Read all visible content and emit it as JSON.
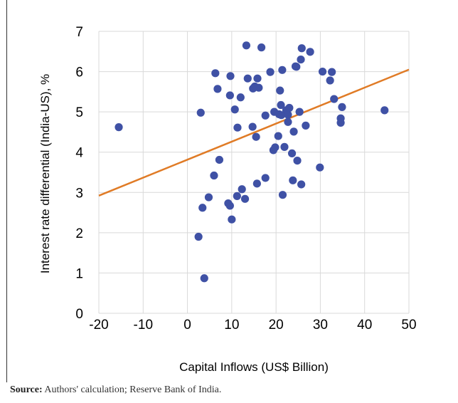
{
  "chart_data": {
    "type": "scatter",
    "title": "",
    "xlabel": "Capital Inflows (US$ Billion)",
    "ylabel": "Interest rate differential (India-US), %",
    "xlim": [
      -20,
      50
    ],
    "ylim": [
      0,
      7
    ],
    "xticks": [
      "-20",
      "-10",
      "0",
      "10",
      "20",
      "30",
      "40",
      "50"
    ],
    "yticks": [
      "0",
      "1",
      "2",
      "3",
      "4",
      "5",
      "6",
      "7"
    ],
    "grid": "vertical and horizontal major gridlines",
    "marker_color": "#3f51a5",
    "trendline_color": "#e07b26",
    "trendline": {
      "x": [
        -20,
        50
      ],
      "y": [
        2.92,
        6.05
      ]
    },
    "points": [
      [
        -15.5,
        4.62
      ],
      [
        2.5,
        1.9
      ],
      [
        3.0,
        4.98
      ],
      [
        3.4,
        2.62
      ],
      [
        3.8,
        0.87
      ],
      [
        4.8,
        2.88
      ],
      [
        6.0,
        3.42
      ],
      [
        6.3,
        5.96
      ],
      [
        6.8,
        5.57
      ],
      [
        7.2,
        3.81
      ],
      [
        9.2,
        2.73
      ],
      [
        9.6,
        2.67
      ],
      [
        9.6,
        5.41
      ],
      [
        9.7,
        5.89
      ],
      [
        10.0,
        2.33
      ],
      [
        10.7,
        5.06
      ],
      [
        11.2,
        2.91
      ],
      [
        11.3,
        4.61
      ],
      [
        12.0,
        5.36
      ],
      [
        12.3,
        3.08
      ],
      [
        13.0,
        2.84
      ],
      [
        13.3,
        6.65
      ],
      [
        13.6,
        5.83
      ],
      [
        14.7,
        4.63
      ],
      [
        14.8,
        5.58
      ],
      [
        15.2,
        5.63
      ],
      [
        15.5,
        4.38
      ],
      [
        15.7,
        3.22
      ],
      [
        15.8,
        5.83
      ],
      [
        16.1,
        5.6
      ],
      [
        16.7,
        6.6
      ],
      [
        17.6,
        3.36
      ],
      [
        17.6,
        4.91
      ],
      [
        18.7,
        5.99
      ],
      [
        19.4,
        4.05
      ],
      [
        19.6,
        5.0
      ],
      [
        19.8,
        4.12
      ],
      [
        20.5,
        4.4
      ],
      [
        20.7,
        4.94
      ],
      [
        20.9,
        5.53
      ],
      [
        21.1,
        5.17
      ],
      [
        21.2,
        4.92
      ],
      [
        21.4,
        6.04
      ],
      [
        21.5,
        2.94
      ],
      [
        21.9,
        4.13
      ],
      [
        22.3,
        5.04
      ],
      [
        22.7,
        4.93
      ],
      [
        22.7,
        4.75
      ],
      [
        23.0,
        5.1
      ],
      [
        23.6,
        3.97
      ],
      [
        23.8,
        3.3
      ],
      [
        24.0,
        4.51
      ],
      [
        24.4,
        6.13
      ],
      [
        24.6,
        6.12
      ],
      [
        24.8,
        3.79
      ],
      [
        25.3,
        5.0
      ],
      [
        25.7,
        3.2
      ],
      [
        25.6,
        6.3
      ],
      [
        25.8,
        6.58
      ],
      [
        26.7,
        4.66
      ],
      [
        27.7,
        6.49
      ],
      [
        29.9,
        3.62
      ],
      [
        30.5,
        6.0
      ],
      [
        32.2,
        5.78
      ],
      [
        32.6,
        5.99
      ],
      [
        33.1,
        5.32
      ],
      [
        34.6,
        4.84
      ],
      [
        34.6,
        4.73
      ],
      [
        34.9,
        5.12
      ],
      [
        44.5,
        5.04
      ]
    ]
  },
  "source": {
    "label": "Source:",
    "text": " Authors' calculation; Reserve Bank of India."
  }
}
